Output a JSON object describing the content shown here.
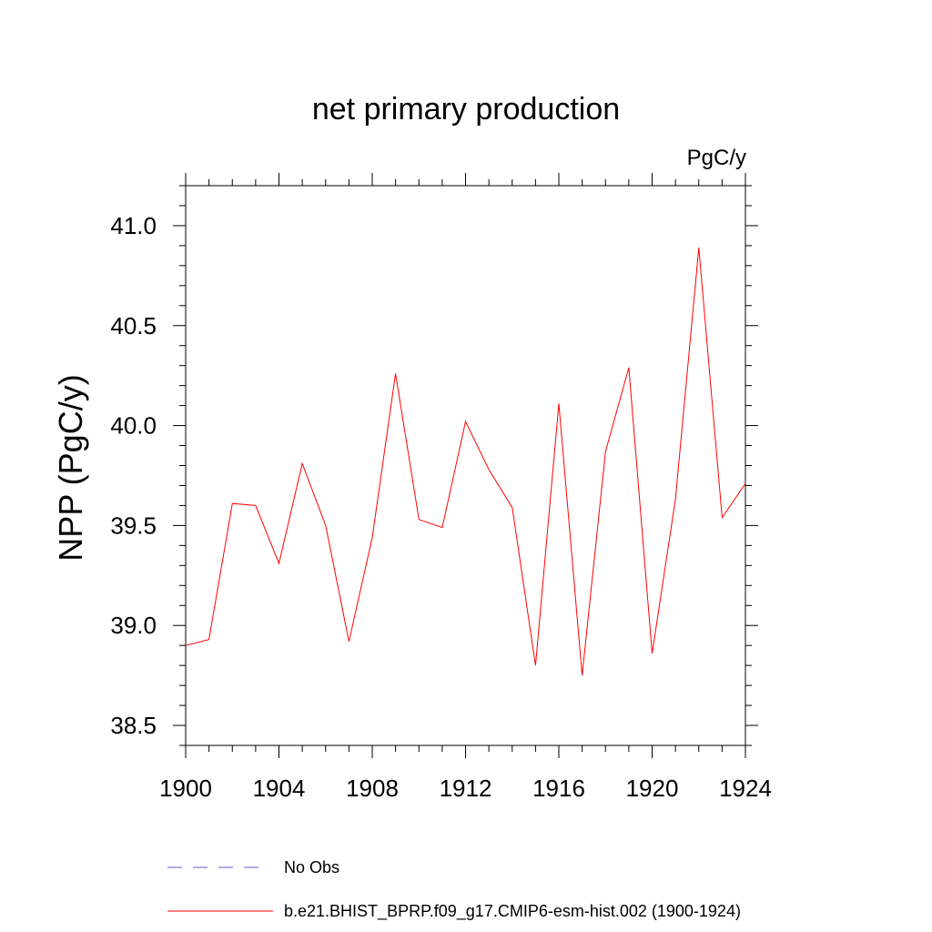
{
  "chart_data": {
    "type": "line",
    "title": "net primary production",
    "units_label": "PgC/y",
    "ylabel": "NPP  (PgC/y)",
    "xlabel": "",
    "xlim": [
      1900,
      1924
    ],
    "ylim": [
      38.4,
      41.2
    ],
    "x_ticks": [
      1900,
      1904,
      1908,
      1912,
      1916,
      1920,
      1924
    ],
    "x_tick_labels": [
      "1900",
      "1904",
      "1908",
      "1912",
      "1916",
      "1920",
      "1924"
    ],
    "y_ticks": [
      38.5,
      39.0,
      39.5,
      40.0,
      40.5,
      41.0
    ],
    "y_tick_labels": [
      "38.5",
      "39.0",
      "39.5",
      "40.0",
      "40.5",
      "41.0"
    ],
    "grid": false,
    "legend_position": "bottom",
    "series": [
      {
        "name": "b.e21.BHIST_BPRP.f09_g17.CMIP6-esm-hist.002 (1900-1924)",
        "color": "#ff0000",
        "style": "solid",
        "x": [
          1900,
          1901,
          1902,
          1903,
          1904,
          1905,
          1906,
          1907,
          1908,
          1909,
          1910,
          1911,
          1912,
          1913,
          1914,
          1915,
          1916,
          1917,
          1918,
          1919,
          1920,
          1921,
          1922,
          1923,
          1924
        ],
        "y": [
          38.9,
          38.93,
          39.61,
          39.6,
          39.31,
          39.81,
          39.5,
          38.92,
          39.44,
          40.26,
          39.53,
          39.49,
          40.02,
          39.78,
          39.59,
          38.8,
          40.11,
          38.75,
          39.87,
          40.29,
          38.86,
          39.63,
          40.89,
          39.54,
          39.71
        ]
      }
    ],
    "legend": [
      {
        "label": "No Obs",
        "color": "#6a5acd",
        "style": "dashed"
      },
      {
        "label": "b.e21.BHIST_BPRP.f09_g17.CMIP6-esm-hist.002 (1900-1924)",
        "color": "#ff0000",
        "style": "solid"
      }
    ]
  }
}
